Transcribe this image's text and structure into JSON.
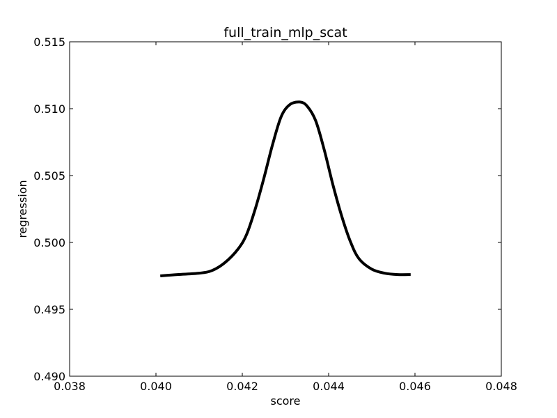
{
  "chart_data": {
    "type": "line",
    "title": "full_train_mlp_scat",
    "xlabel": "score",
    "ylabel": "regression",
    "xlim": [
      0.038,
      0.048
    ],
    "ylim": [
      0.49,
      0.515
    ],
    "x_ticks": [
      "0.038",
      "0.040",
      "0.042",
      "0.044",
      "0.046",
      "0.048"
    ],
    "y_ticks": [
      "0.490",
      "0.495",
      "0.500",
      "0.505",
      "0.510",
      "0.515"
    ],
    "grid": false,
    "legend": "none",
    "series": [
      {
        "color": "#000000",
        "x": [
          0.0401,
          0.0405,
          0.041,
          0.0413,
          0.0416,
          0.0419,
          0.0421,
          0.0423,
          0.0425,
          0.0427,
          0.0429,
          0.0431,
          0.04333,
          0.0435,
          0.0437,
          0.0439,
          0.0441,
          0.0443,
          0.0445,
          0.0447,
          0.045,
          0.0453,
          0.0456,
          0.0459
        ],
        "y": [
          0.4975,
          0.4976,
          0.4977,
          0.4979,
          0.4985,
          0.4995,
          0.5006,
          0.5025,
          0.5048,
          0.5073,
          0.5094,
          0.5103,
          0.5105,
          0.5102,
          0.5091,
          0.5069,
          0.5043,
          0.502,
          0.5001,
          0.4988,
          0.498,
          0.4977,
          0.4976,
          0.4976
        ]
      }
    ]
  }
}
